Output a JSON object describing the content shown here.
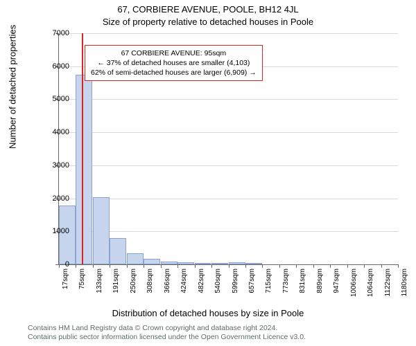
{
  "title_main": "67, CORBIERE AVENUE, POOLE, BH12 4JL",
  "title_sub": "Size of property relative to detached houses in Poole",
  "ylabel": "Number of detached properties",
  "xlabel": "Distribution of detached houses by size in Poole",
  "chart": {
    "type": "histogram",
    "background_color": "#ffffff",
    "grid_color": "#d9d9d9",
    "axis_color": "#666666",
    "bar_fill": "#c6d5ed",
    "bar_border": "#8aa4cf",
    "marker_color": "#d22",
    "ylim": [
      0,
      7000
    ],
    "yticks": [
      0,
      1000,
      2000,
      3000,
      4000,
      5000,
      6000,
      7000
    ],
    "xlim_sqm": [
      17,
      1180
    ],
    "bar_width_sqm": 58,
    "x_tick_values": [
      17,
      75,
      133,
      191,
      250,
      308,
      366,
      424,
      482,
      540,
      599,
      657,
      715,
      773,
      831,
      889,
      947,
      1006,
      1064,
      1122,
      1180
    ],
    "x_tick_labels": [
      "17sqm",
      "75sqm",
      "133sqm",
      "191sqm",
      "250sqm",
      "308sqm",
      "366sqm",
      "424sqm",
      "482sqm",
      "540sqm",
      "599sqm",
      "657sqm",
      "715sqm",
      "773sqm",
      "831sqm",
      "889sqm",
      "947sqm",
      "1006sqm",
      "1064sqm",
      "1122sqm",
      "1180sqm"
    ],
    "bars": [
      {
        "x_start": 17,
        "count": 1780
      },
      {
        "x_start": 75,
        "count": 5750
      },
      {
        "x_start": 133,
        "count": 2040
      },
      {
        "x_start": 191,
        "count": 790
      },
      {
        "x_start": 250,
        "count": 340
      },
      {
        "x_start": 308,
        "count": 160
      },
      {
        "x_start": 366,
        "count": 90
      },
      {
        "x_start": 424,
        "count": 55
      },
      {
        "x_start": 482,
        "count": 40
      },
      {
        "x_start": 540,
        "count": 45
      },
      {
        "x_start": 599,
        "count": 60
      },
      {
        "x_start": 657,
        "count": 40
      },
      {
        "x_start": 715,
        "count": 0
      },
      {
        "x_start": 773,
        "count": 0
      },
      {
        "x_start": 831,
        "count": 0
      },
      {
        "x_start": 889,
        "count": 0
      },
      {
        "x_start": 947,
        "count": 0
      },
      {
        "x_start": 1006,
        "count": 0
      },
      {
        "x_start": 1064,
        "count": 0
      },
      {
        "x_start": 1122,
        "count": 0
      }
    ],
    "marker_value_sqm": 95,
    "info_box": {
      "left_sqm": 105,
      "top_count": 6650,
      "line1": "67 CORBIERE AVENUE: 95sqm",
      "line2": "← 37% of detached houses are smaller (4,103)",
      "line3": "62% of semi-detached houses are larger (6,909) →"
    },
    "label_fontsize": 13,
    "tick_fontsize": 11
  },
  "footer_line1": "Contains HM Land Registry data © Crown copyright and database right 2024.",
  "footer_line2": "Contains public sector information licensed under the Open Government Licence v3.0."
}
